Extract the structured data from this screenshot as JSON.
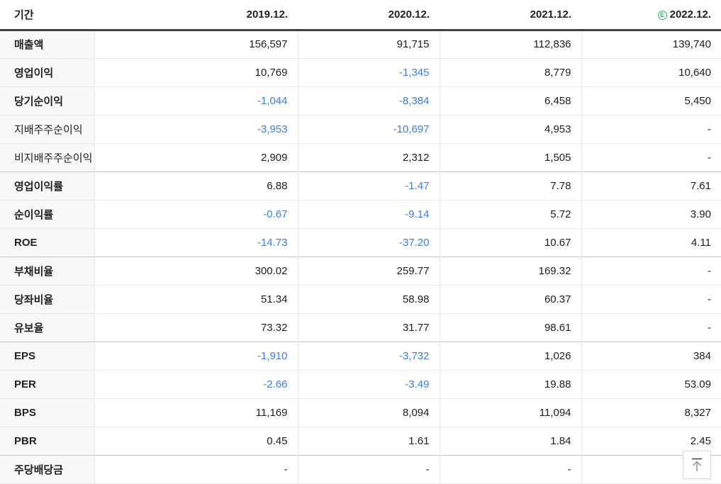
{
  "table": {
    "header": {
      "period_label": "기간",
      "columns": [
        "2019.12.",
        "2020.12.",
        "2021.12.",
        "2022.12."
      ],
      "estimate_badge": "E"
    },
    "rows": [
      {
        "label": "매출액",
        "bold": true,
        "section_start": false,
        "values": [
          "156,597",
          "91,715",
          "112,836",
          "139,740"
        ]
      },
      {
        "label": "영업이익",
        "bold": true,
        "section_start": false,
        "values": [
          "10,769",
          "-1,345",
          "8,779",
          "10,640"
        ]
      },
      {
        "label": "당기순이익",
        "bold": true,
        "section_start": false,
        "values": [
          "-1,044",
          "-8,384",
          "6,458",
          "5,450"
        ]
      },
      {
        "label": "지배주주순이익",
        "bold": false,
        "section_start": false,
        "values": [
          "-3,953",
          "-10,697",
          "4,953",
          "-"
        ]
      },
      {
        "label": "비지배주주순이익",
        "bold": false,
        "section_start": false,
        "values": [
          "2,909",
          "2,312",
          "1,505",
          "-"
        ]
      },
      {
        "label": "영업이익률",
        "bold": true,
        "section_start": true,
        "values": [
          "6.88",
          "-1.47",
          "7.78",
          "7.61"
        ]
      },
      {
        "label": "순이익률",
        "bold": true,
        "section_start": false,
        "values": [
          "-0.67",
          "-9.14",
          "5.72",
          "3.90"
        ]
      },
      {
        "label": "ROE",
        "bold": true,
        "section_start": false,
        "values": [
          "-14.73",
          "-37.20",
          "10.67",
          "4.11"
        ]
      },
      {
        "label": "부채비율",
        "bold": true,
        "section_start": true,
        "values": [
          "300.02",
          "259.77",
          "169.32",
          "-"
        ]
      },
      {
        "label": "당좌비율",
        "bold": true,
        "section_start": false,
        "values": [
          "51.34",
          "58.98",
          "60.37",
          "-"
        ]
      },
      {
        "label": "유보율",
        "bold": true,
        "section_start": false,
        "values": [
          "73.32",
          "31.77",
          "98.61",
          "-"
        ]
      },
      {
        "label": "EPS",
        "bold": true,
        "section_start": true,
        "values": [
          "-1,910",
          "-3,732",
          "1,026",
          "384"
        ]
      },
      {
        "label": "PER",
        "bold": true,
        "section_start": false,
        "values": [
          "-2.66",
          "-3.49",
          "19.88",
          "53.09"
        ]
      },
      {
        "label": "BPS",
        "bold": true,
        "section_start": false,
        "values": [
          "11,169",
          "8,094",
          "11,094",
          "8,327"
        ]
      },
      {
        "label": "PBR",
        "bold": true,
        "section_start": false,
        "values": [
          "0.45",
          "1.61",
          "1.84",
          "2.45"
        ]
      },
      {
        "label": "주당배당금",
        "bold": true,
        "section_start": true,
        "values": [
          "-",
          "-",
          "-",
          "-"
        ]
      }
    ]
  },
  "colors": {
    "negative_value": "#3d7ce9",
    "estimate_green": "#35b374",
    "header_border": "#404040",
    "section_border": "#c4c4c4",
    "row_border": "#e7e7e7",
    "label_bg": "#f8f8f8"
  }
}
